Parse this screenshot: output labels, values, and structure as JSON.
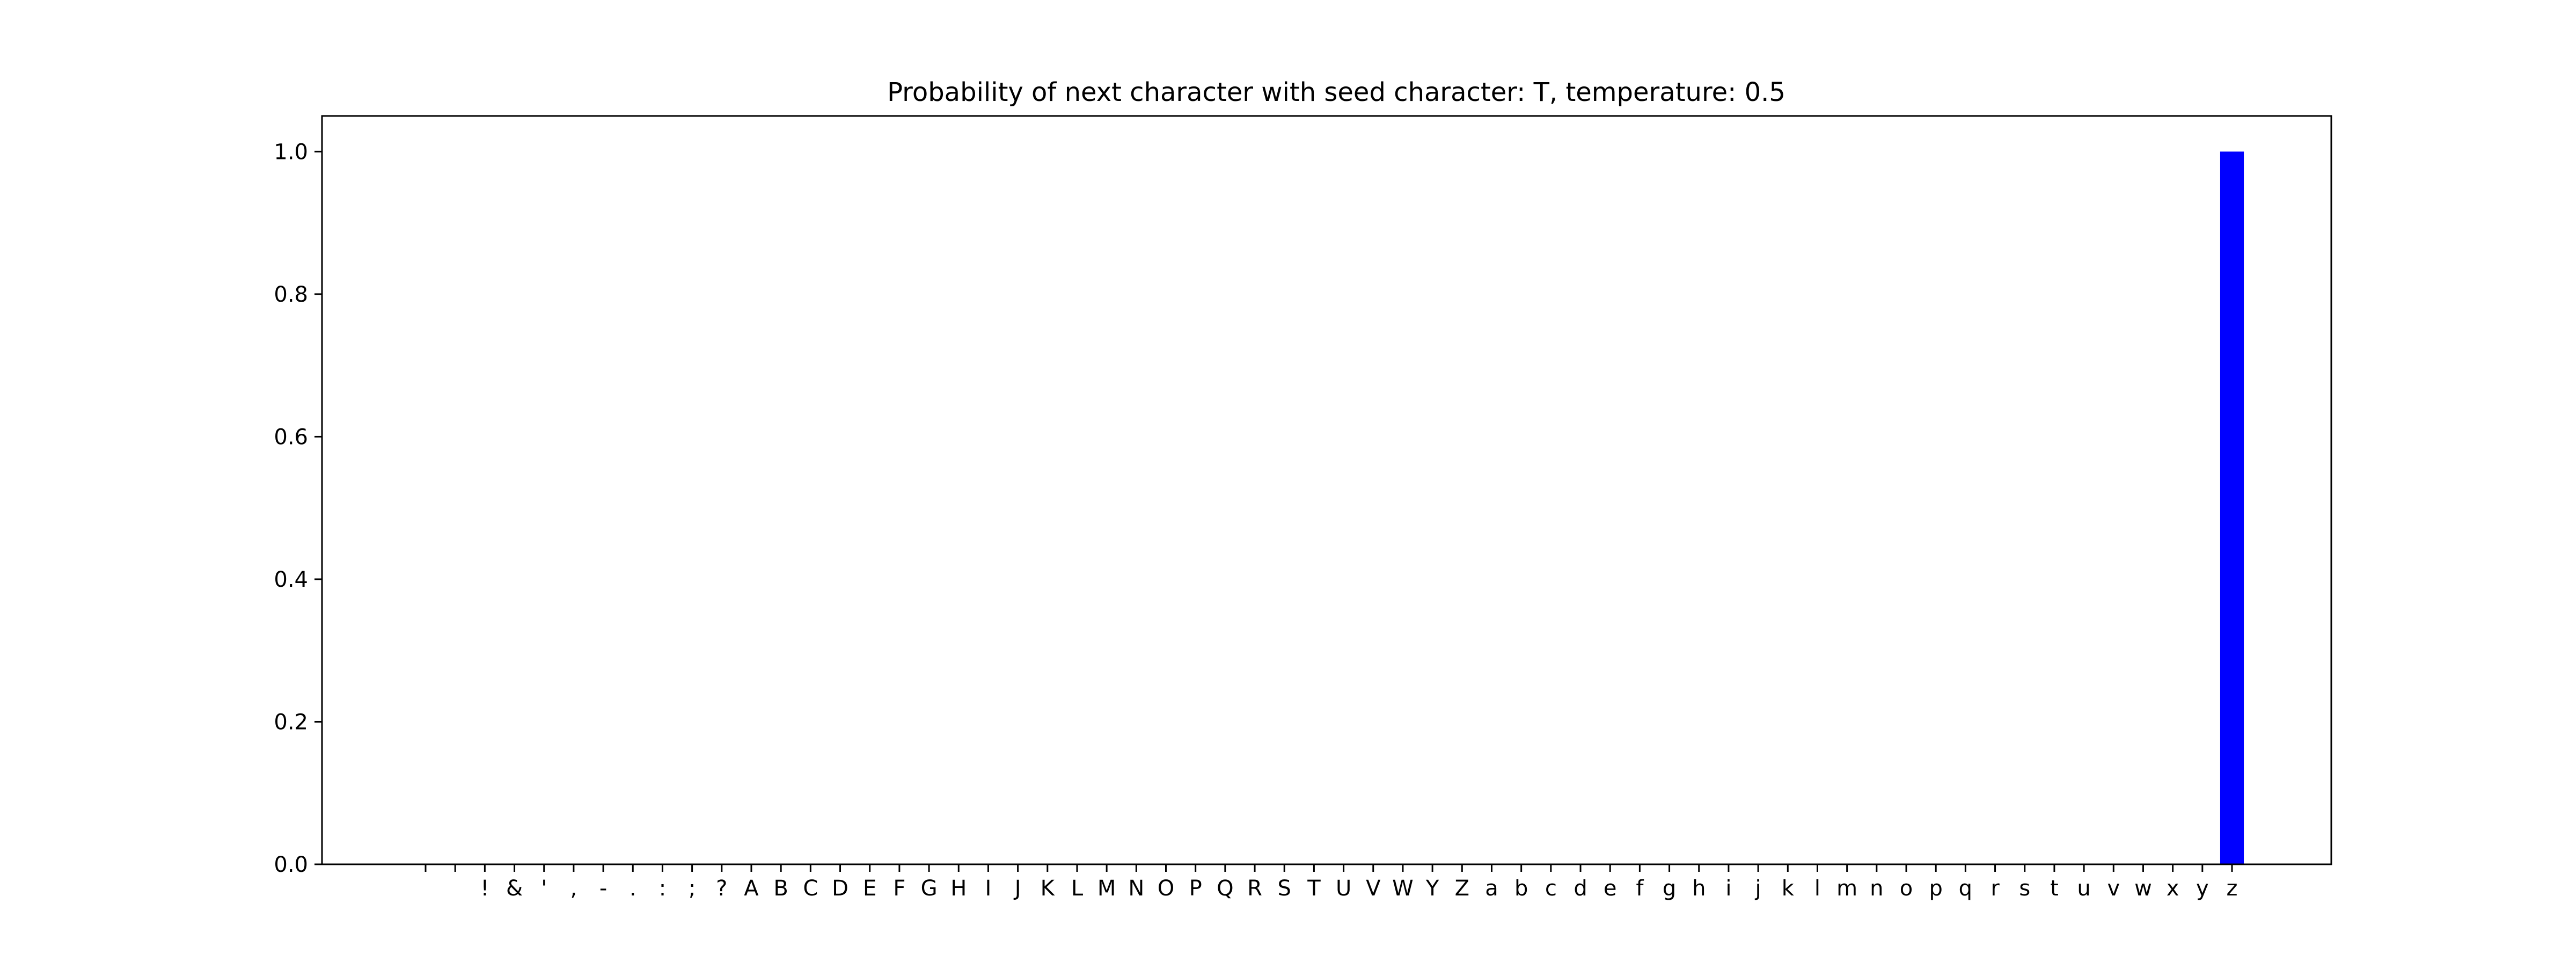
{
  "chart_data": {
    "type": "bar",
    "title": "Probability of next character with seed character: T, temperature: 0.5",
    "xlabel": "",
    "ylabel": "",
    "ylim": [
      0,
      1.05
    ],
    "yticks": [
      "0.0",
      "0.2",
      "0.4",
      "0.6",
      "0.8",
      "1.0"
    ],
    "categories": [
      "\n",
      " ",
      "!",
      "&",
      "'",
      ",",
      "-",
      ".",
      ":",
      ";",
      "?",
      "A",
      "B",
      "C",
      "D",
      "E",
      "F",
      "G",
      "H",
      "I",
      "J",
      "K",
      "L",
      "M",
      "N",
      "O",
      "P",
      "Q",
      "R",
      "S",
      "T",
      "U",
      "V",
      "W",
      "Y",
      "Z",
      "a",
      "b",
      "c",
      "d",
      "e",
      "f",
      "g",
      "h",
      "i",
      "j",
      "k",
      "l",
      "m",
      "n",
      "o",
      "p",
      "q",
      "r",
      "s",
      "t",
      "u",
      "v",
      "w",
      "x",
      "y",
      "z"
    ],
    "values": [
      0,
      0,
      0,
      0,
      0,
      0,
      0,
      0,
      0,
      0,
      0,
      0,
      0,
      0,
      0,
      0,
      0,
      0,
      0,
      0,
      0,
      0,
      0,
      0,
      0,
      0,
      0,
      0,
      0,
      0,
      0,
      0,
      0,
      0,
      0,
      0,
      0,
      0,
      0,
      0,
      0,
      0,
      0,
      0,
      0,
      0,
      0,
      0,
      0,
      0,
      0,
      0,
      0,
      0,
      0,
      0,
      0,
      0,
      0,
      0,
      0,
      1.0
    ],
    "bar_color": "#0000ff",
    "grid": false,
    "legend": "none"
  }
}
